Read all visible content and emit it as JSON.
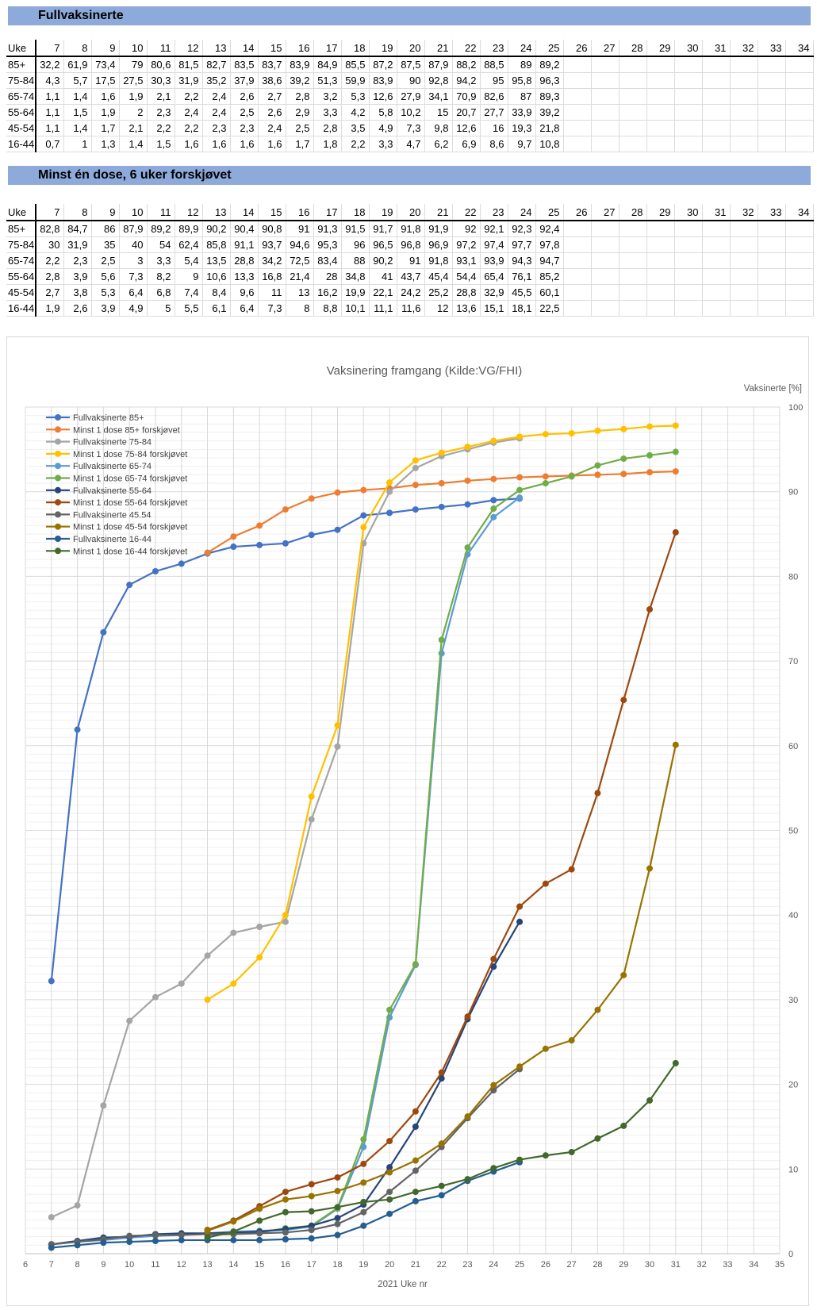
{
  "accent_band_color": "#8EAADB",
  "tables": [
    {
      "title": "Fullvaksinerte",
      "corner_label": "Uke",
      "weeks": [
        7,
        8,
        9,
        10,
        11,
        12,
        13,
        14,
        15,
        16,
        17,
        18,
        19,
        20,
        21,
        22,
        23,
        24,
        25,
        26,
        27,
        28,
        29,
        30,
        31,
        32,
        33,
        34
      ],
      "rows": [
        {
          "label": "85+",
          "values": [
            "32,2",
            "61,9",
            "73,4",
            "79",
            "80,6",
            "81,5",
            "82,7",
            "83,5",
            "83,7",
            "83,9",
            "84,9",
            "85,5",
            "87,2",
            "87,5",
            "87,9",
            "88,2",
            "88,5",
            "89",
            "89,2"
          ]
        },
        {
          "label": "75-84",
          "values": [
            "4,3",
            "5,7",
            "17,5",
            "27,5",
            "30,3",
            "31,9",
            "35,2",
            "37,9",
            "38,6",
            "39,2",
            "51,3",
            "59,9",
            "83,9",
            "90",
            "92,8",
            "94,2",
            "95",
            "95,8",
            "96,3"
          ]
        },
        {
          "label": "65-74",
          "values": [
            "1,1",
            "1,4",
            "1,6",
            "1,9",
            "2,1",
            "2,2",
            "2,4",
            "2,6",
            "2,7",
            "2,8",
            "3,2",
            "5,3",
            "12,6",
            "27,9",
            "34,1",
            "70,9",
            "82,6",
            "87",
            "89,3"
          ]
        },
        {
          "label": "55-64",
          "values": [
            "1,1",
            "1,5",
            "1,9",
            "2",
            "2,3",
            "2,4",
            "2,4",
            "2,5",
            "2,6",
            "2,9",
            "3,3",
            "4,2",
            "5,8",
            "10,2",
            "15",
            "20,7",
            "27,7",
            "33,9",
            "39,2"
          ]
        },
        {
          "label": "45-54",
          "values": [
            "1,1",
            "1,4",
            "1,7",
            "2,1",
            "2,2",
            "2,2",
            "2,3",
            "2,3",
            "2,4",
            "2,5",
            "2,8",
            "3,5",
            "4,9",
            "7,3",
            "9,8",
            "12,6",
            "16",
            "19,3",
            "21,8"
          ]
        },
        {
          "label": "16-44",
          "values": [
            "0,7",
            "1",
            "1,3",
            "1,4",
            "1,5",
            "1,6",
            "1,6",
            "1,6",
            "1,6",
            "1,7",
            "1,8",
            "2,2",
            "3,3",
            "4,7",
            "6,2",
            "6,9",
            "8,6",
            "9,7",
            "10,8"
          ]
        }
      ]
    },
    {
      "title": "Minst én dose, 6 uker forskjøvet",
      "corner_label": "Uke",
      "weeks": [
        7,
        8,
        9,
        10,
        11,
        12,
        13,
        14,
        15,
        16,
        17,
        18,
        19,
        20,
        21,
        22,
        23,
        24,
        25,
        26,
        27,
        28,
        29,
        30,
        31,
        32,
        33,
        34
      ],
      "rows": [
        {
          "label": "85+",
          "values": [
            "82,8",
            "84,7",
            "86",
            "87,9",
            "89,2",
            "89,9",
            "90,2",
            "90,4",
            "90,8",
            "91",
            "91,3",
            "91,5",
            "91,7",
            "91,8",
            "91,9",
            "92",
            "92,1",
            "92,3",
            "92,4"
          ]
        },
        {
          "label": "75-84",
          "values": [
            "30",
            "31,9",
            "35",
            "40",
            "54",
            "62,4",
            "85,8",
            "91,1",
            "93,7",
            "94,6",
            "95,3",
            "96",
            "96,5",
            "96,8",
            "96,9",
            "97,2",
            "97,4",
            "97,7",
            "97,8"
          ]
        },
        {
          "label": "65-74",
          "values": [
            "2,2",
            "2,3",
            "2,5",
            "3",
            "3,3",
            "5,4",
            "13,5",
            "28,8",
            "34,2",
            "72,5",
            "83,4",
            "88",
            "90,2",
            "91",
            "91,8",
            "93,1",
            "93,9",
            "94,3",
            "94,7"
          ]
        },
        {
          "label": "55-64",
          "values": [
            "2,8",
            "3,9",
            "5,6",
            "7,3",
            "8,2",
            "9",
            "10,6",
            "13,3",
            "16,8",
            "21,4",
            "28",
            "34,8",
            "41",
            "43,7",
            "45,4",
            "54,4",
            "65,4",
            "76,1",
            "85,2"
          ]
        },
        {
          "label": "45-54",
          "values": [
            "2,7",
            "3,8",
            "5,3",
            "6,4",
            "6,8",
            "7,4",
            "8,4",
            "9,6",
            "11",
            "13",
            "16,2",
            "19,9",
            "22,1",
            "24,2",
            "25,2",
            "28,8",
            "32,9",
            "45,5",
            "60,1"
          ]
        },
        {
          "label": "16-44",
          "values": [
            "1,9",
            "2,6",
            "3,9",
            "4,9",
            "5",
            "5,5",
            "6,1",
            "6,4",
            "7,3",
            "8",
            "8,8",
            "10,1",
            "11,1",
            "11,6",
            "12",
            "13,6",
            "15,1",
            "18,1",
            "22,5"
          ]
        }
      ]
    }
  ],
  "chart_data": {
    "type": "line",
    "title": "Vaksinering framgang (Kilde:VG/FHI)",
    "xlabel": "2021 Uke nr",
    "ylabel_right": "Vaksinerte [%]",
    "xlim": [
      6,
      35
    ],
    "ylim": [
      0,
      100
    ],
    "x_ticks": [
      6,
      7,
      8,
      9,
      10,
      11,
      12,
      13,
      14,
      15,
      16,
      17,
      18,
      19,
      20,
      21,
      22,
      23,
      24,
      25,
      26,
      27,
      28,
      29,
      30,
      31,
      32,
      33,
      34,
      35
    ],
    "y_ticks": [
      0,
      10,
      20,
      30,
      40,
      50,
      60,
      70,
      80,
      90,
      100
    ],
    "grid": {
      "vertical_per_week": true,
      "horizontal_minor_step": 1,
      "horizontal_major_step": 10
    },
    "legend_position": "top-left-inside",
    "series": [
      {
        "name": "Fullvaksinerte 85+",
        "color": "#4472C4",
        "x_start": 7,
        "values": [
          32.2,
          61.9,
          73.4,
          79,
          80.6,
          81.5,
          82.7,
          83.5,
          83.7,
          83.9,
          84.9,
          85.5,
          87.2,
          87.5,
          87.9,
          88.2,
          88.5,
          89,
          89.2
        ]
      },
      {
        "name": "Minst 1 dose 85+ forskjøvet",
        "color": "#ED7D31",
        "x_start": 13,
        "values": [
          82.8,
          84.7,
          86,
          87.9,
          89.2,
          89.9,
          90.2,
          90.4,
          90.8,
          91,
          91.3,
          91.5,
          91.7,
          91.8,
          91.9,
          92,
          92.1,
          92.3,
          92.4
        ]
      },
      {
        "name": "Fullvaksinerte 75-84",
        "color": "#A5A5A5",
        "x_start": 7,
        "values": [
          4.3,
          5.7,
          17.5,
          27.5,
          30.3,
          31.9,
          35.2,
          37.9,
          38.6,
          39.2,
          51.3,
          59.9,
          83.9,
          90,
          92.8,
          94.2,
          95,
          95.8,
          96.3
        ]
      },
      {
        "name": "Minst 1 dose 75-84 forskjøvet",
        "color": "#FFC000",
        "x_start": 13,
        "values": [
          30,
          31.9,
          35,
          40,
          54,
          62.4,
          85.8,
          91.1,
          93.7,
          94.6,
          95.3,
          96,
          96.5,
          96.8,
          96.9,
          97.2,
          97.4,
          97.7,
          97.8
        ]
      },
      {
        "name": "Fullvaksinerte 65-74",
        "color": "#5B9BD5",
        "x_start": 7,
        "values": [
          1.1,
          1.4,
          1.6,
          1.9,
          2.1,
          2.2,
          2.4,
          2.6,
          2.7,
          2.8,
          3.2,
          5.3,
          12.6,
          27.9,
          34.1,
          70.9,
          82.6,
          87,
          89.3
        ]
      },
      {
        "name": "Minst 1 dose 65-74 forskjøvet",
        "color": "#70AD47",
        "x_start": 13,
        "values": [
          2.2,
          2.3,
          2.5,
          3,
          3.3,
          5.4,
          13.5,
          28.8,
          34.2,
          72.5,
          83.4,
          88,
          90.2,
          91,
          91.8,
          93.1,
          93.9,
          94.3,
          94.7
        ]
      },
      {
        "name": "Fullvaksinerte 55-64",
        "color": "#264478",
        "x_start": 7,
        "values": [
          1.1,
          1.5,
          1.9,
          2,
          2.3,
          2.4,
          2.4,
          2.5,
          2.6,
          2.9,
          3.3,
          4.2,
          5.8,
          10.2,
          15,
          20.7,
          27.7,
          33.9,
          39.2
        ]
      },
      {
        "name": "Minst 1 dose 55-64 forskjøvet",
        "color": "#9E480E",
        "x_start": 13,
        "values": [
          2.8,
          3.9,
          5.6,
          7.3,
          8.2,
          9,
          10.6,
          13.3,
          16.8,
          21.4,
          28,
          34.8,
          41,
          43.7,
          45.4,
          54.4,
          65.4,
          76.1,
          85.2
        ]
      },
      {
        "name": "Fullvaksinerte 45.54",
        "color": "#636363",
        "x_start": 7,
        "values": [
          1.1,
          1.4,
          1.7,
          2.1,
          2.2,
          2.2,
          2.3,
          2.3,
          2.4,
          2.5,
          2.8,
          3.5,
          4.9,
          7.3,
          9.8,
          12.6,
          16,
          19.3,
          21.8
        ]
      },
      {
        "name": "Minst 1 dose 45-54 forskjøvet",
        "color": "#997300",
        "x_start": 13,
        "values": [
          2.7,
          3.8,
          5.3,
          6.4,
          6.8,
          7.4,
          8.4,
          9.6,
          11,
          13,
          16.2,
          19.9,
          22.1,
          24.2,
          25.2,
          28.8,
          32.9,
          45.5,
          60.1
        ]
      },
      {
        "name": "Fullvaksinerte 16-44",
        "color": "#255E91",
        "x_start": 7,
        "values": [
          0.7,
          1,
          1.3,
          1.4,
          1.5,
          1.6,
          1.6,
          1.6,
          1.6,
          1.7,
          1.8,
          2.2,
          3.3,
          4.7,
          6.2,
          6.9,
          8.6,
          9.7,
          10.8
        ]
      },
      {
        "name": "Minst 1 dose 16-44 forskjøvet",
        "color": "#43682B",
        "x_start": 13,
        "values": [
          1.9,
          2.6,
          3.9,
          4.9,
          5,
          5.5,
          6.1,
          6.4,
          7.3,
          8,
          8.8,
          10.1,
          11.1,
          11.6,
          12,
          13.6,
          15.1,
          18.1,
          22.5
        ]
      }
    ]
  }
}
